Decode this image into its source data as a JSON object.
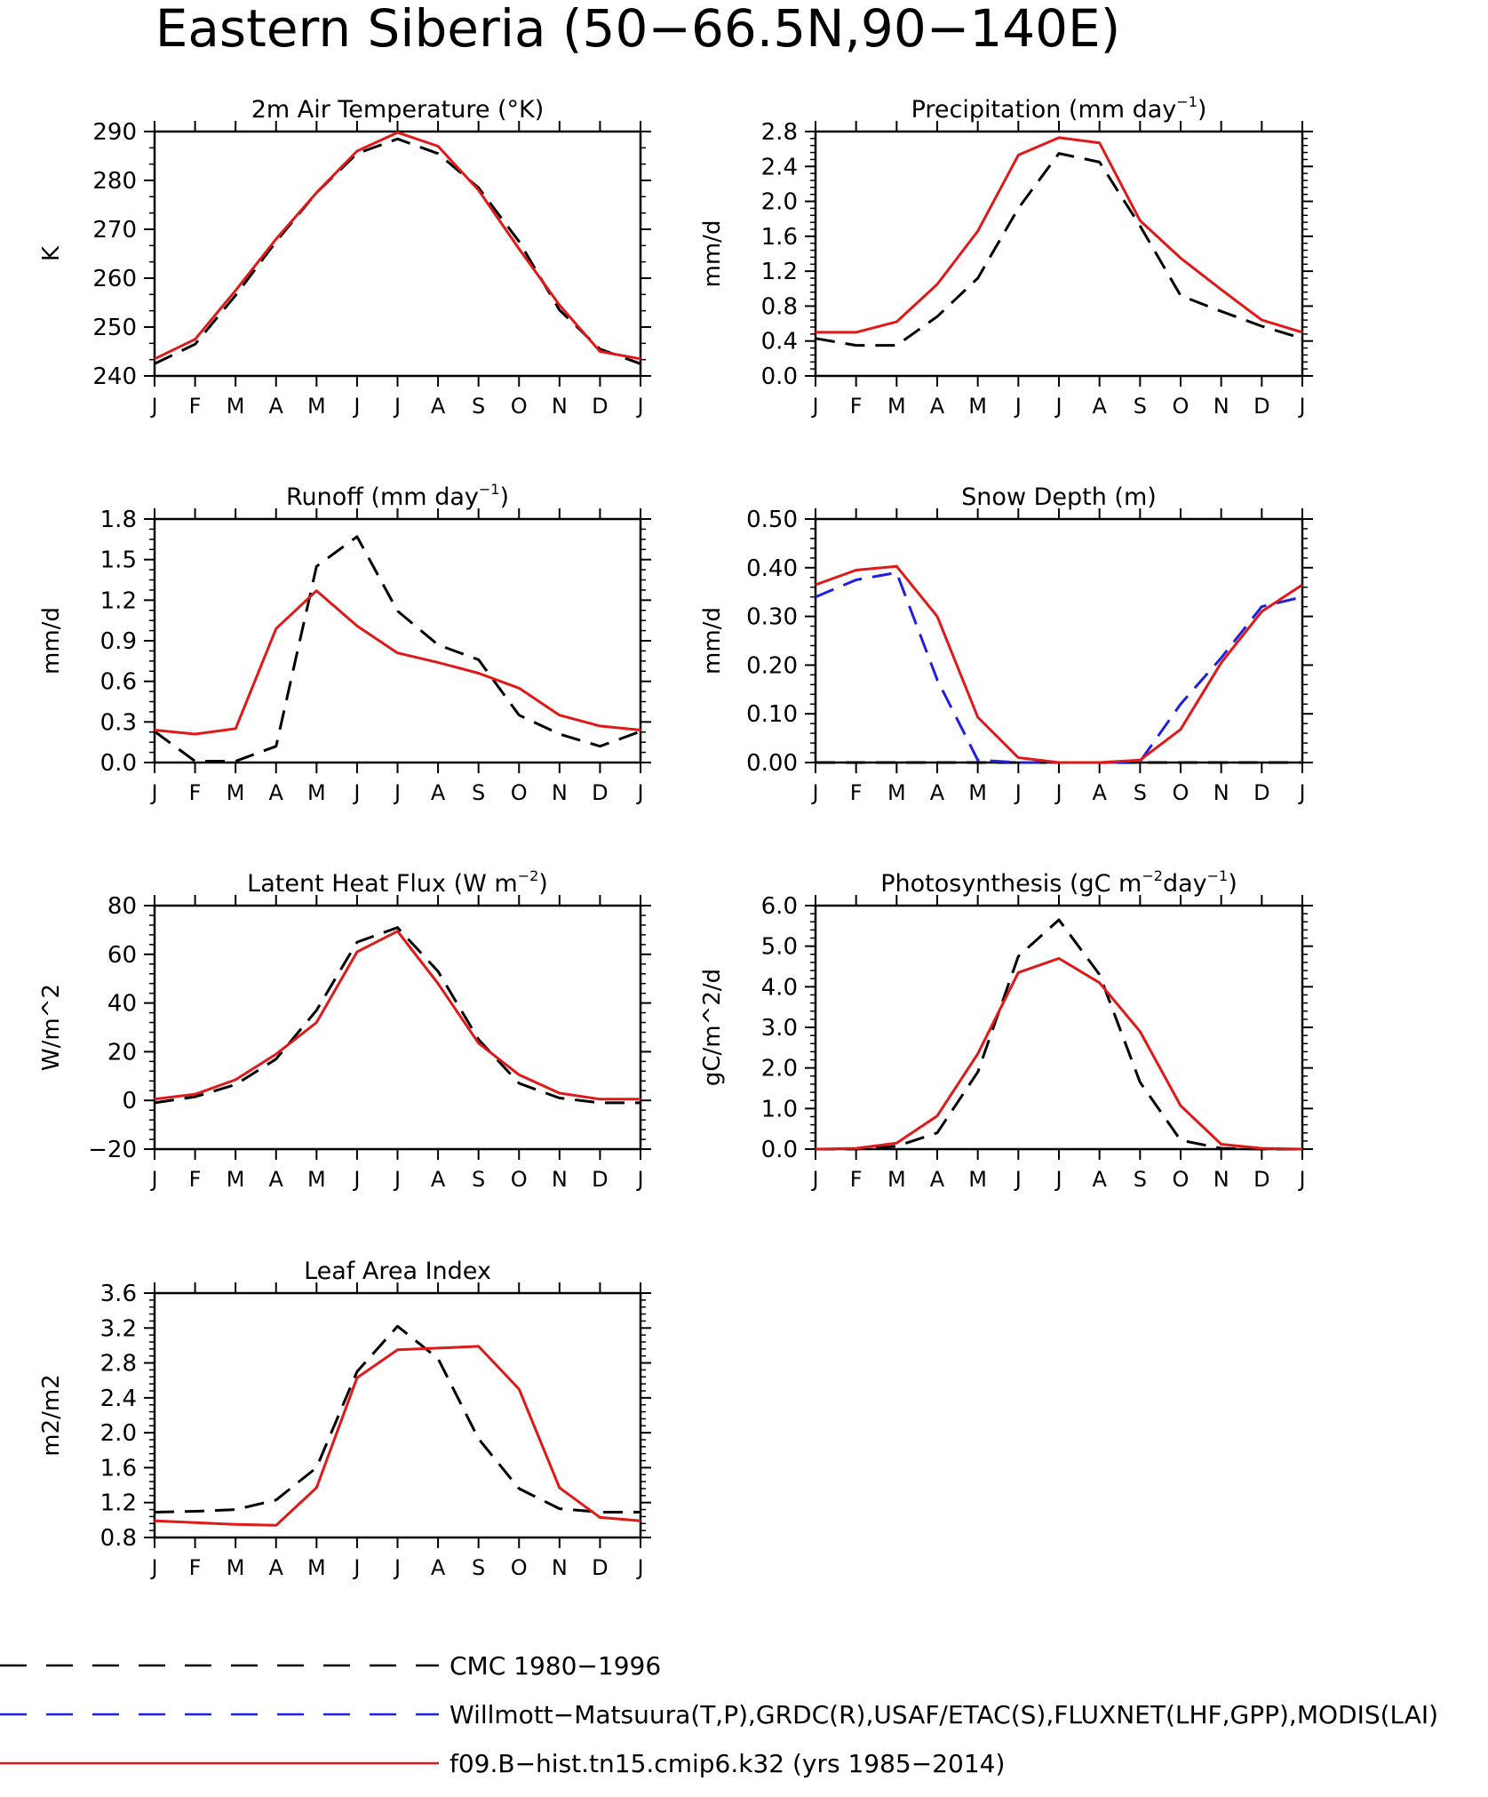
{
  "page": {
    "title": "Eastern Siberia (50−66.5N,90−140E)"
  },
  "months": [
    "J",
    "F",
    "M",
    "A",
    "M",
    "J",
    "J",
    "A",
    "S",
    "O",
    "N",
    "D",
    "J"
  ],
  "colors": {
    "obs_black": "#000000",
    "obs_blue": "#1f1fe0",
    "model_red": "#e01818"
  },
  "legend": [
    {
      "label": "CMC 1980−1996",
      "color": "#000000",
      "style": "dashed"
    },
    {
      "label": "Willmott−Matsuura(T,P),GRDC(R),USAF/ETAC(S),FLUXNET(LHF,GPP),MODIS(LAI)",
      "color": "#1f1fe0",
      "style": "dashed"
    },
    {
      "label": "f09.B−hist.tn15.cmip6.k32 (yrs 1985−2014)",
      "color": "#e01818",
      "style": "solid"
    }
  ],
  "chart_data": [
    {
      "type": "line",
      "title": "2m Air Temperature (°K)",
      "title_parts": [
        [
          "2m Air Temperature (°K)",
          ""
        ]
      ],
      "ylabel": "K",
      "ylim": [
        240,
        290
      ],
      "yticks": [
        240,
        250,
        260,
        270,
        280,
        290
      ],
      "ytick_labels": [
        "240",
        "250",
        "260",
        "270",
        "280",
        "290"
      ],
      "yminor": 2,
      "series": [
        {
          "color": "#000000",
          "style": "dashed",
          "values": [
            242.5,
            246.5,
            256.5,
            267.5,
            277.5,
            285.5,
            288.5,
            285.5,
            278.5,
            267.5,
            253.5,
            245.5,
            242.5
          ]
        },
        {
          "color": "#e01818",
          "style": "solid",
          "values": [
            243.5,
            247.5,
            257.5,
            268.0,
            277.5,
            286.0,
            289.8,
            287.0,
            278.0,
            266.0,
            254.5,
            245.0,
            243.5
          ]
        }
      ]
    },
    {
      "type": "line",
      "title": "Precipitation (mm day⁻¹)",
      "title_parts": [
        [
          "Precipitation (mm day",
          ""
        ],
        [
          "−1",
          "sup"
        ],
        [
          ")",
          ""
        ]
      ],
      "ylabel": "mm/d",
      "ylim": [
        0,
        2.8
      ],
      "yticks": [
        0,
        0.4,
        0.8,
        1.2,
        1.6,
        2.0,
        2.4,
        2.8
      ],
      "ytick_labels": [
        "0.0",
        "0.4",
        "0.8",
        "1.2",
        "1.6",
        "2.0",
        "2.4",
        "2.8"
      ],
      "yminor": 4,
      "series": [
        {
          "color": "#000000",
          "style": "dashed",
          "values": [
            0.43,
            0.35,
            0.35,
            0.68,
            1.12,
            1.92,
            2.55,
            2.45,
            1.72,
            0.92,
            0.74,
            0.57,
            0.43
          ]
        },
        {
          "color": "#e01818",
          "style": "solid",
          "values": [
            0.5,
            0.5,
            0.62,
            1.05,
            1.66,
            2.53,
            2.73,
            2.67,
            1.78,
            1.35,
            0.99,
            0.64,
            0.5
          ]
        }
      ]
    },
    {
      "type": "line",
      "title": "Runoff (mm day⁻¹)",
      "title_parts": [
        [
          "Runoff (mm day",
          ""
        ],
        [
          "−1",
          "sup"
        ],
        [
          ")",
          ""
        ]
      ],
      "ylabel": "mm/d",
      "ylim": [
        0,
        1.8
      ],
      "yticks": [
        0,
        0.3,
        0.6,
        0.9,
        1.2,
        1.5,
        1.8
      ],
      "ytick_labels": [
        "0.0",
        "0.3",
        "0.6",
        "0.9",
        "1.2",
        "1.5",
        "1.8"
      ],
      "yminor": 3,
      "series": [
        {
          "color": "#000000",
          "style": "dashed",
          "values": [
            0.23,
            0.01,
            0.01,
            0.12,
            1.45,
            1.67,
            1.12,
            0.87,
            0.76,
            0.35,
            0.21,
            0.12,
            0.23
          ]
        },
        {
          "color": "#e01818",
          "style": "solid",
          "values": [
            0.24,
            0.21,
            0.25,
            0.99,
            1.27,
            1.01,
            0.81,
            0.74,
            0.66,
            0.55,
            0.35,
            0.27,
            0.24
          ]
        }
      ]
    },
    {
      "type": "line",
      "title": "Snow Depth (m)",
      "title_parts": [
        [
          "Snow Depth (m)",
          ""
        ]
      ],
      "ylabel": "mm/d",
      "ylim": [
        0,
        0.5
      ],
      "yticks": [
        0,
        0.1,
        0.2,
        0.3,
        0.4,
        0.5
      ],
      "ytick_labels": [
        "0.00",
        "0.10",
        "0.20",
        "0.30",
        "0.40",
        "0.50"
      ],
      "yminor": 4,
      "series": [
        {
          "color": "#000000",
          "style": "dashed",
          "values": [
            0,
            0,
            0,
            0,
            0,
            0,
            0,
            0,
            0,
            0,
            0,
            0,
            0
          ]
        },
        {
          "color": "#1f1fe0",
          "style": "dashed",
          "values": [
            0.34,
            0.375,
            0.39,
            0.17,
            0.005,
            0.0,
            0.0,
            0.0,
            0.002,
            0.12,
            0.215,
            0.32,
            0.34
          ]
        },
        {
          "color": "#e01818",
          "style": "solid",
          "values": [
            0.365,
            0.395,
            0.403,
            0.3,
            0.093,
            0.01,
            0.0,
            0.0,
            0.005,
            0.068,
            0.205,
            0.31,
            0.365
          ]
        }
      ]
    },
    {
      "type": "line",
      "title": "Latent Heat Flux (W m⁻²)",
      "title_parts": [
        [
          "Latent Heat Flux (W m",
          ""
        ],
        [
          "−2",
          "sup"
        ],
        [
          ")",
          ""
        ]
      ],
      "ylabel": "W/m^2",
      "ylim": [
        -20,
        80
      ],
      "yticks": [
        -20,
        0,
        20,
        40,
        60,
        80
      ],
      "ytick_labels": [
        "−20",
        "0",
        "20",
        "40",
        "60",
        "80"
      ],
      "yminor": 4,
      "series": [
        {
          "color": "#000000",
          "style": "dashed",
          "values": [
            -1,
            1.5,
            6.5,
            17,
            37,
            65,
            71,
            53,
            25,
            7,
            1,
            -1,
            -1
          ]
        },
        {
          "color": "#e01818",
          "style": "solid",
          "values": [
            0.5,
            2.5,
            8.5,
            19,
            32,
            61,
            69.5,
            48,
            23.5,
            10.5,
            3,
            0.5,
            0.5
          ]
        }
      ]
    },
    {
      "type": "line",
      "title": "Photosynthesis (gC m⁻²day⁻¹)",
      "title_parts": [
        [
          "Photosynthesis (gC m",
          ""
        ],
        [
          "−2",
          "sup"
        ],
        [
          "day",
          ""
        ],
        [
          "−1",
          "sup"
        ],
        [
          ")",
          ""
        ]
      ],
      "ylabel": "gC/m^2/d",
      "ylim": [
        0,
        6
      ],
      "yticks": [
        0,
        1,
        2,
        3,
        4,
        5,
        6
      ],
      "ytick_labels": [
        "0.0",
        "1.0",
        "2.0",
        "3.0",
        "4.0",
        "5.0",
        "6.0"
      ],
      "yminor": 4,
      "series": [
        {
          "color": "#000000",
          "style": "dashed",
          "values": [
            0,
            0,
            0.07,
            0.4,
            1.9,
            4.75,
            5.65,
            4.3,
            1.65,
            0.22,
            0.02,
            0,
            0
          ]
        },
        {
          "color": "#e01818",
          "style": "solid",
          "values": [
            0,
            0.02,
            0.15,
            0.82,
            2.35,
            4.35,
            4.7,
            4.1,
            2.9,
            1.07,
            0.12,
            0.02,
            0
          ]
        }
      ]
    },
    {
      "type": "line",
      "title": "Leaf Area Index",
      "title_parts": [
        [
          "Leaf Area Index",
          ""
        ]
      ],
      "ylabel": "m2/m2",
      "ylim": [
        0.8,
        3.6
      ],
      "yticks": [
        0.8,
        1.2,
        1.6,
        2.0,
        2.4,
        2.8,
        3.2,
        3.6
      ],
      "ytick_labels": [
        "0.8",
        "1.2",
        "1.6",
        "2.0",
        "2.4",
        "2.8",
        "3.2",
        "3.6"
      ],
      "yminor": 4,
      "series": [
        {
          "color": "#000000",
          "style": "dashed",
          "values": [
            1.09,
            1.1,
            1.12,
            1.23,
            1.6,
            2.7,
            3.22,
            2.85,
            1.93,
            1.36,
            1.13,
            1.09,
            1.09
          ]
        },
        {
          "color": "#e01818",
          "style": "solid",
          "values": [
            0.99,
            0.97,
            0.95,
            0.94,
            1.37,
            2.63,
            2.95,
            2.97,
            2.99,
            2.5,
            1.37,
            1.03,
            0.99
          ]
        }
      ]
    }
  ]
}
